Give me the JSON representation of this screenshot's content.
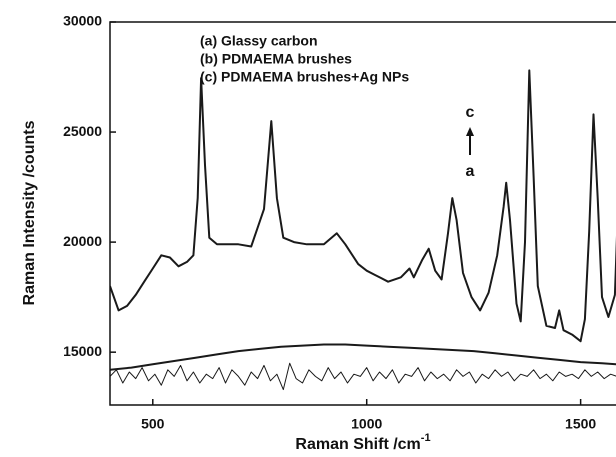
{
  "chart_data": {
    "type": "line",
    "x_label": "Raman Shift /cm",
    "x_label_sup": "-1",
    "y_label": "Raman Intensity /counts",
    "xlim": [
      400,
      1585
    ],
    "ylim": [
      12600,
      30000
    ],
    "xticks": [
      500,
      1000,
      1500
    ],
    "yticks": [
      15000,
      20000,
      25000,
      30000
    ],
    "annotations": [
      "c",
      "a"
    ],
    "series": [
      {
        "name": "(a) Glassy carbon",
        "color": "#1a1a1a",
        "x": [
          400,
          415,
          430,
          445,
          460,
          475,
          490,
          505,
          520,
          535,
          550,
          565,
          580,
          595,
          610,
          625,
          640,
          655,
          670,
          685,
          700,
          715,
          730,
          745,
          760,
          775,
          790,
          805,
          820,
          835,
          850,
          865,
          880,
          895,
          910,
          925,
          940,
          955,
          970,
          985,
          1000,
          1015,
          1030,
          1045,
          1060,
          1075,
          1090,
          1105,
          1120,
          1135,
          1150,
          1165,
          1180,
          1195,
          1210,
          1225,
          1240,
          1255,
          1270,
          1285,
          1300,
          1315,
          1330,
          1345,
          1360,
          1375,
          1390,
          1405,
          1420,
          1435,
          1450,
          1465,
          1480,
          1495,
          1510,
          1525,
          1540,
          1555,
          1570,
          1585
        ],
        "values": [
          13900,
          14200,
          13600,
          14100,
          13800,
          14300,
          13700,
          14000,
          13500,
          14200,
          13900,
          14400,
          13700,
          14100,
          13600,
          14000,
          13800,
          14300,
          13600,
          14200,
          13900,
          13500,
          14100,
          13800,
          14400,
          13700,
          14000,
          13300,
          14500,
          13800,
          13600,
          14200,
          13900,
          13700,
          14300,
          13800,
          14100,
          13600,
          14000,
          13900,
          14300,
          13700,
          14100,
          13800,
          14200,
          13600,
          14000,
          13900,
          14300,
          13700,
          14100,
          13800,
          14000,
          13700,
          14200,
          13900,
          14100,
          13600,
          14000,
          13800,
          14200,
          13900,
          14100,
          13700,
          14000,
          13900,
          14200,
          13800,
          14000,
          13700,
          14100,
          13900,
          14000,
          13800,
          14200,
          13900,
          14100,
          13800,
          14000,
          13900
        ]
      },
      {
        "name": "(b) PDMAEMA brushes",
        "color": "#1a1a1a",
        "x": [
          400,
          450,
          500,
          550,
          600,
          650,
          700,
          750,
          800,
          850,
          900,
          950,
          1000,
          1050,
          1100,
          1150,
          1200,
          1250,
          1300,
          1350,
          1400,
          1450,
          1500,
          1550,
          1585
        ],
        "values": [
          14200,
          14300,
          14450,
          14600,
          14750,
          14900,
          15050,
          15150,
          15250,
          15300,
          15350,
          15350,
          15300,
          15250,
          15200,
          15150,
          15100,
          15050,
          14950,
          14850,
          14750,
          14650,
          14550,
          14500,
          14450
        ]
      },
      {
        "name": "(c) PDMAEMA brushes+Ag NPs",
        "color": "#1a1a1a",
        "x": [
          400,
          420,
          440,
          460,
          480,
          500,
          520,
          540,
          560,
          580,
          595,
          605,
          613,
          622,
          632,
          650,
          680,
          700,
          730,
          760,
          777,
          790,
          805,
          830,
          860,
          900,
          930,
          950,
          980,
          1000,
          1020,
          1050,
          1080,
          1100,
          1110,
          1130,
          1145,
          1160,
          1175,
          1190,
          1200,
          1210,
          1225,
          1245,
          1265,
          1285,
          1305,
          1320,
          1326,
          1335,
          1350,
          1360,
          1370,
          1380,
          1390,
          1400,
          1420,
          1440,
          1450,
          1460,
          1480,
          1500,
          1510,
          1520,
          1530,
          1540,
          1550,
          1565,
          1580,
          1585
        ],
        "values": [
          18000,
          16900,
          17100,
          17600,
          18200,
          18800,
          19400,
          19300,
          18900,
          19100,
          19400,
          22000,
          27450,
          23500,
          20200,
          19900,
          19900,
          19900,
          19800,
          21500,
          25500,
          22000,
          20200,
          20000,
          19900,
          19900,
          20400,
          19900,
          19000,
          18700,
          18500,
          18200,
          18400,
          18800,
          18400,
          19200,
          19700,
          18700,
          18300,
          20400,
          22000,
          21000,
          18600,
          17500,
          16900,
          17700,
          19400,
          21600,
          22700,
          21000,
          17200,
          16400,
          20000,
          27800,
          23000,
          18000,
          16200,
          16100,
          16900,
          16000,
          15800,
          15500,
          16500,
          20500,
          25800,
          22000,
          17500,
          16600,
          17600,
          20300
        ]
      }
    ]
  }
}
